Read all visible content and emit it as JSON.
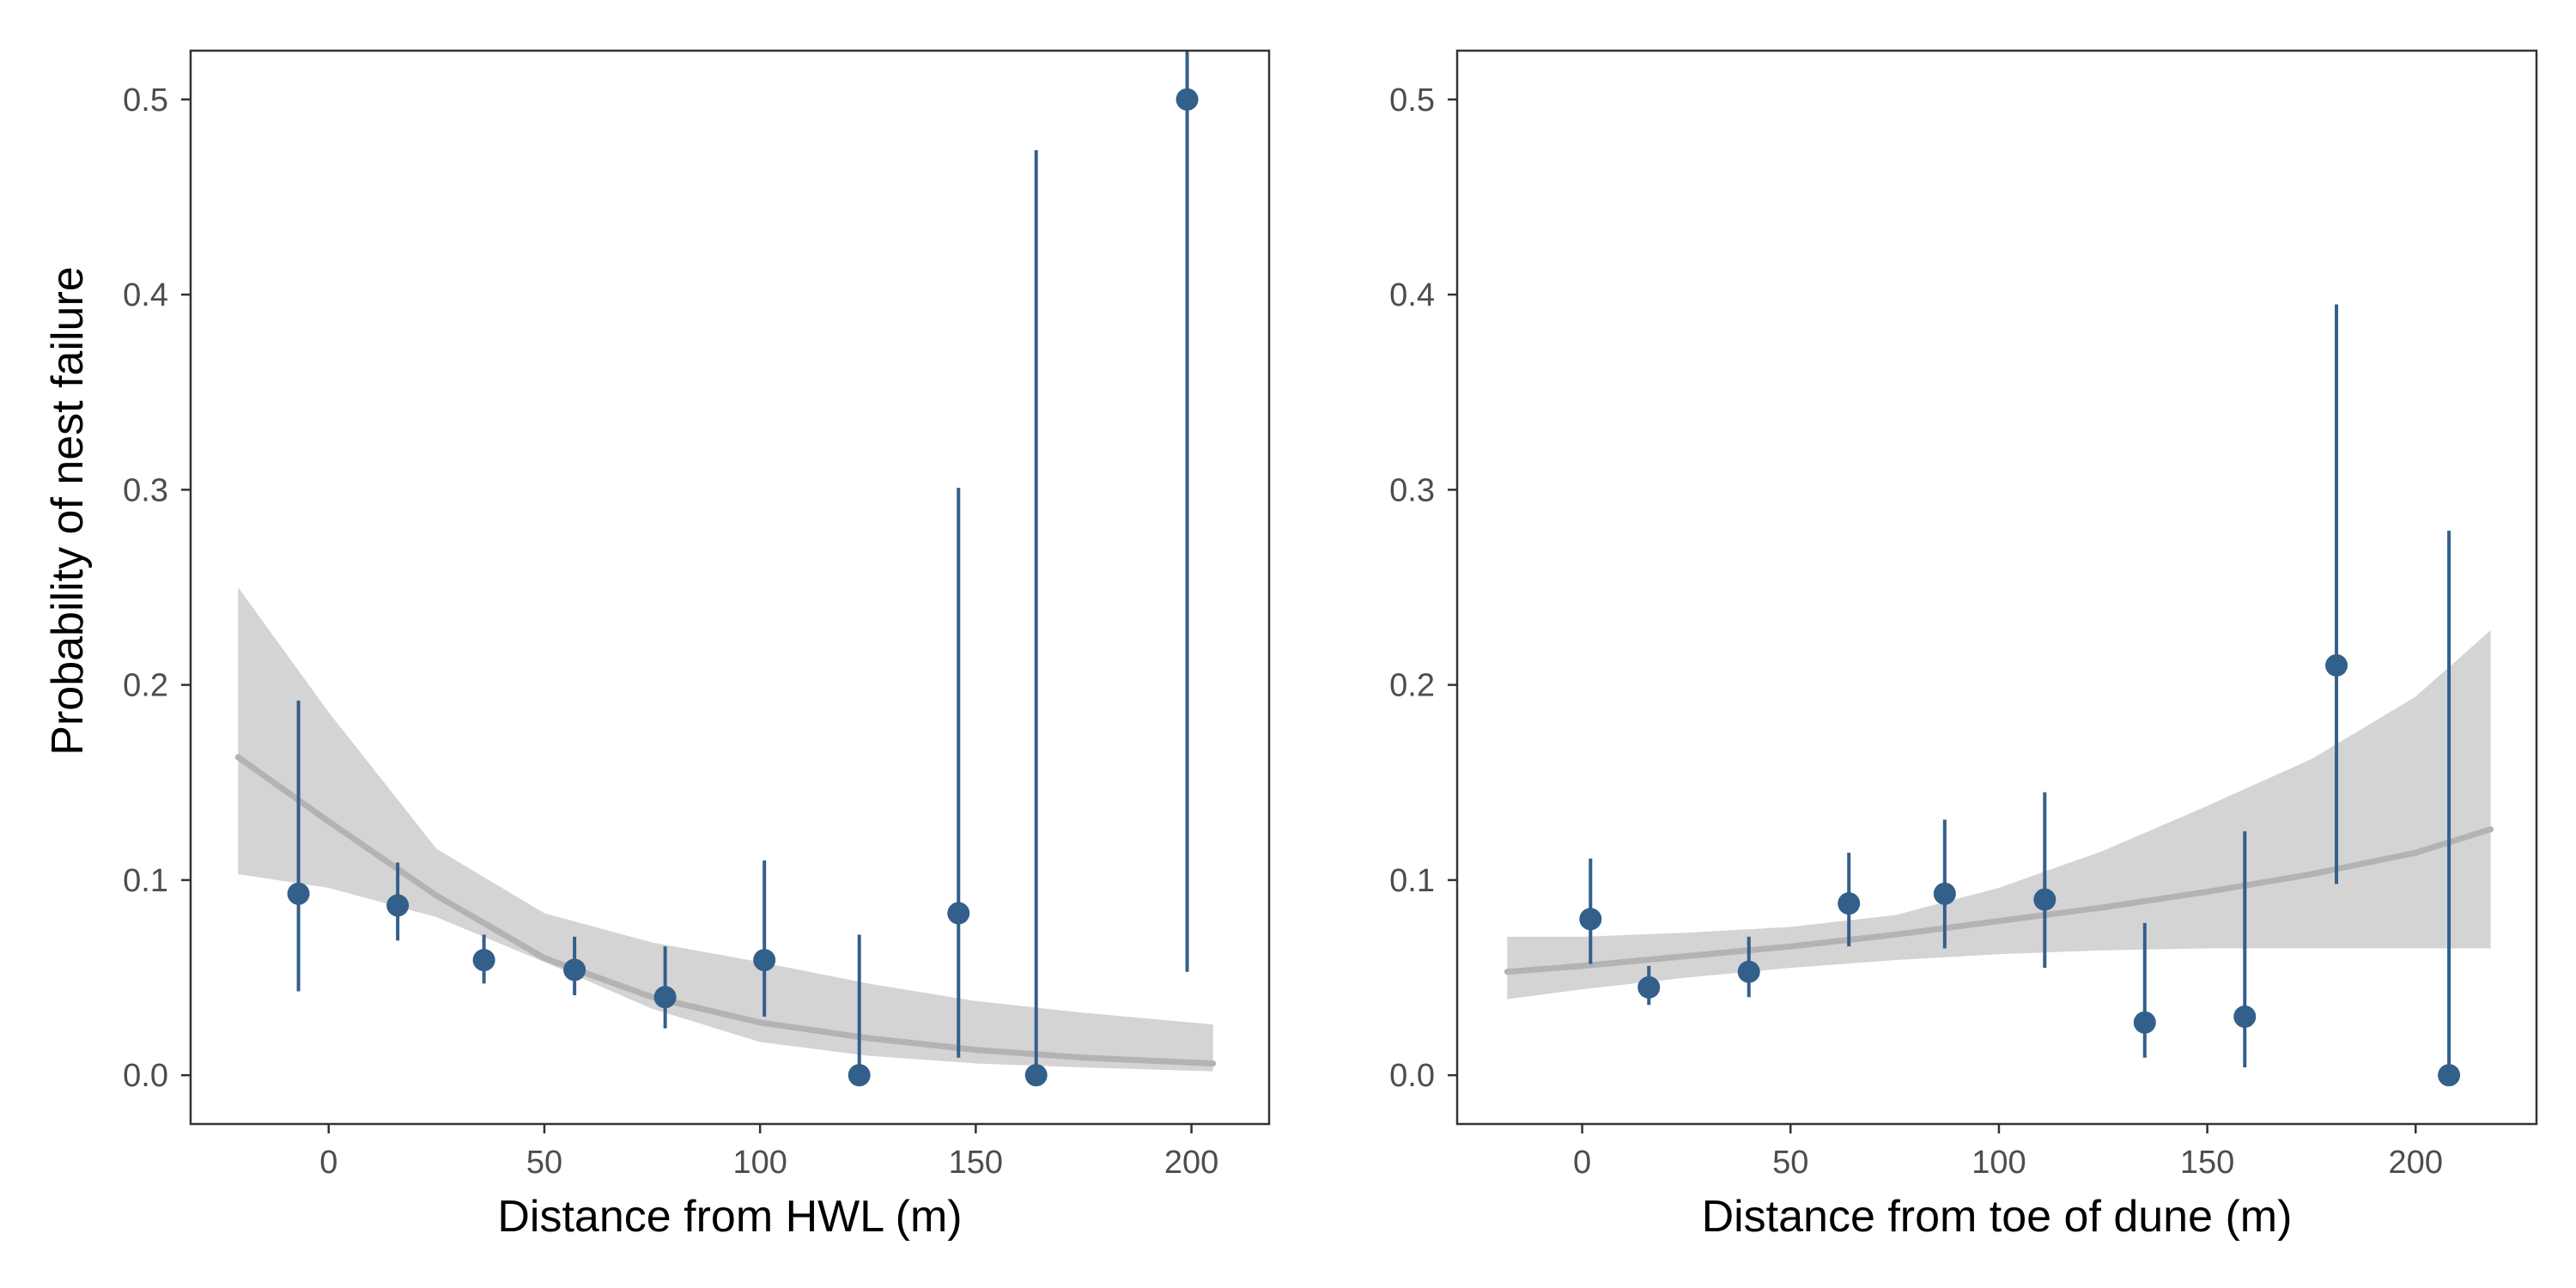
{
  "colors": {
    "points": "#335f8b",
    "ribbon": "#d4d4d4",
    "fit_line": "#b3b3b3",
    "panel_border": "#333333",
    "tick_text": "#4d4d4d",
    "background": "#ffffff"
  },
  "shared_ylabel": "Probability of nest failure",
  "chart_data": [
    {
      "type": "scatter",
      "title": "",
      "xlabel": "Distance from HWL (m)",
      "ylabel": "Probability of nest failure",
      "xlim": [
        -32,
        218
      ],
      "ylim": [
        -0.025,
        0.525
      ],
      "xticks": [
        0,
        50,
        100,
        150,
        200
      ],
      "xtick_labels": [
        "0",
        "50",
        "100",
        "150",
        "200"
      ],
      "yticks": [
        0,
        0.1,
        0.2,
        0.3,
        0.4,
        0.5
      ],
      "ytick_labels": [
        "0.0",
        "0.1",
        "0.2",
        "0.3",
        "0.4",
        "0.5"
      ],
      "grid": false,
      "points": [
        {
          "x": -7,
          "y": 0.093,
          "lower": 0.043,
          "upper": 0.192
        },
        {
          "x": 16,
          "y": 0.087,
          "lower": 0.069,
          "upper": 0.109
        },
        {
          "x": 36,
          "y": 0.059,
          "lower": 0.047,
          "upper": 0.072
        },
        {
          "x": 57,
          "y": 0.054,
          "lower": 0.041,
          "upper": 0.071
        },
        {
          "x": 78,
          "y": 0.04,
          "lower": 0.024,
          "upper": 0.066
        },
        {
          "x": 101,
          "y": 0.059,
          "lower": 0.03,
          "upper": 0.11
        },
        {
          "x": 123,
          "y": 0.0,
          "lower": 0.0,
          "upper": 0.072
        },
        {
          "x": 146,
          "y": 0.083,
          "lower": 0.009,
          "upper": 0.301
        },
        {
          "x": 164,
          "y": 0.0,
          "lower": 0.0,
          "upper": 0.474
        },
        {
          "x": 199,
          "y": 0.5,
          "lower": 0.053,
          "upper": 0.525
        }
      ],
      "fit": {
        "x": [
          -21,
          0,
          25,
          50,
          75,
          100,
          125,
          150,
          175,
          205
        ],
        "y": [
          0.163,
          0.13,
          0.092,
          0.06,
          0.04,
          0.027,
          0.019,
          0.013,
          0.009,
          0.006
        ],
        "lower": [
          0.103,
          0.096,
          0.081,
          0.058,
          0.034,
          0.017,
          0.01,
          0.006,
          0.004,
          0.002
        ],
        "upper": [
          0.25,
          0.186,
          0.116,
          0.083,
          0.068,
          0.058,
          0.047,
          0.038,
          0.032,
          0.026
        ]
      }
    },
    {
      "type": "scatter",
      "title": "",
      "xlabel": "Distance from toe of dune (m)",
      "ylabel": "",
      "xlim": [
        -30,
        229
      ],
      "ylim": [
        -0.025,
        0.525
      ],
      "xticks": [
        0,
        50,
        100,
        150,
        200
      ],
      "xtick_labels": [
        "0",
        "50",
        "100",
        "150",
        "200"
      ],
      "yticks": [
        0,
        0.1,
        0.2,
        0.3,
        0.4,
        0.5
      ],
      "ytick_labels": [
        "0.0",
        "0.1",
        "0.2",
        "0.3",
        "0.4",
        "0.5"
      ],
      "grid": false,
      "points": [
        {
          "x": 2,
          "y": 0.08,
          "lower": 0.057,
          "upper": 0.111
        },
        {
          "x": 16,
          "y": 0.045,
          "lower": 0.036,
          "upper": 0.056
        },
        {
          "x": 40,
          "y": 0.053,
          "lower": 0.04,
          "upper": 0.071
        },
        {
          "x": 64,
          "y": 0.088,
          "lower": 0.066,
          "upper": 0.114
        },
        {
          "x": 87,
          "y": 0.093,
          "lower": 0.065,
          "upper": 0.131
        },
        {
          "x": 111,
          "y": 0.09,
          "lower": 0.055,
          "upper": 0.145
        },
        {
          "x": 135,
          "y": 0.027,
          "lower": 0.009,
          "upper": 0.078
        },
        {
          "x": 159,
          "y": 0.03,
          "lower": 0.004,
          "upper": 0.125
        },
        {
          "x": 181,
          "y": 0.21,
          "lower": 0.098,
          "upper": 0.395
        },
        {
          "x": 208,
          "y": 0.0,
          "lower": 0.0,
          "upper": 0.279
        }
      ],
      "fit": {
        "x": [
          -18,
          0,
          25,
          50,
          75,
          100,
          125,
          150,
          175,
          200,
          218
        ],
        "y": [
          0.053,
          0.056,
          0.061,
          0.066,
          0.072,
          0.079,
          0.086,
          0.094,
          0.103,
          0.114,
          0.126
        ],
        "lower": [
          0.039,
          0.044,
          0.05,
          0.055,
          0.059,
          0.062,
          0.064,
          0.065,
          0.065,
          0.065,
          0.065
        ],
        "upper": [
          0.071,
          0.071,
          0.073,
          0.076,
          0.082,
          0.096,
          0.115,
          0.138,
          0.162,
          0.194,
          0.228
        ]
      }
    }
  ]
}
